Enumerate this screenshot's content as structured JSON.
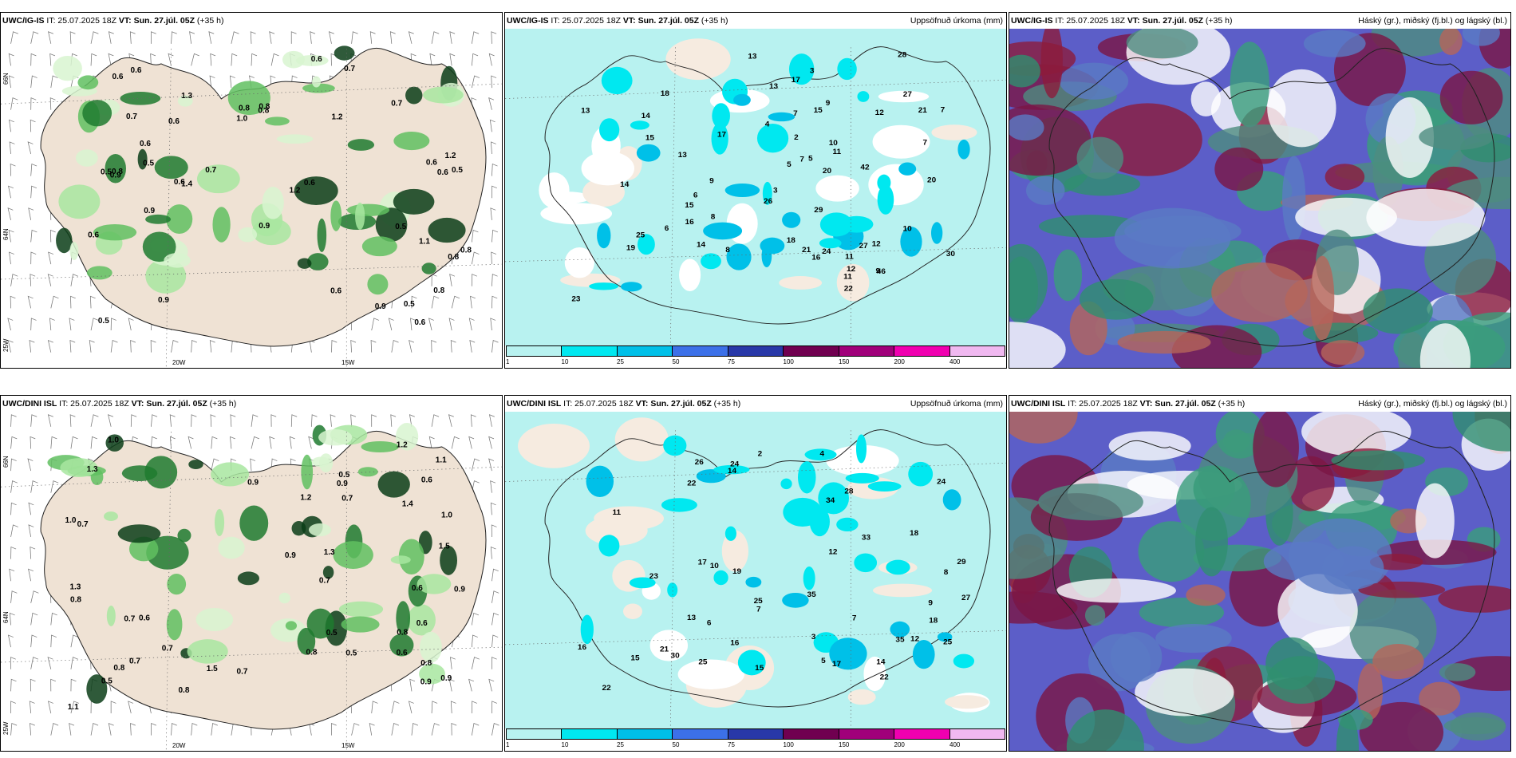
{
  "colorbar": {
    "ticks": [
      "1",
      "10",
      "25",
      "50",
      "75",
      "100",
      "150",
      "200",
      "400"
    ],
    "colors": [
      "#b8f2f0",
      "#00e8f0",
      "#00c0e8",
      "#3c70e8",
      "#2838a8",
      "#700050",
      "#a0007a",
      "#f000b0",
      "#f0b8f0"
    ]
  },
  "lon_labels": [
    "20W",
    "15W"
  ],
  "lat_labels": [
    "66N",
    "64N",
    "25W"
  ],
  "panels": [
    {
      "model": "UWC/IG-IS",
      "it": "IT: 25.07.2025 18Z",
      "vt_label": "VT:",
      "vt": "Sun. 27.júl. 05Z",
      "lead": "(+35 h)",
      "right": "",
      "kind": "precip1h",
      "values": [
        "0.5",
        "0.9",
        "0.7",
        "1.1",
        "0.6",
        "0.9",
        "0.6",
        "0.8",
        "0.5",
        "0.9",
        "0.7",
        "0.6",
        "1.2",
        "1.0",
        "0.8",
        "0.8",
        "0.9",
        "0.8",
        "0.6",
        "0.9",
        "0.5",
        "0.7",
        "0.6",
        "0.8",
        "1.2",
        "0.6",
        "0.8",
        "0.6",
        "0.6",
        "0.5",
        "0.6",
        "1.4",
        "0.6",
        "0.7",
        "1.3",
        "0.6",
        "0.5",
        "1.2",
        "0.8",
        "0.5",
        "0.6"
      ]
    },
    {
      "model": "UWC/IG-IS",
      "it": "IT: 25.07.2025 18Z",
      "vt_label": "VT:",
      "vt": "Sun. 27.júl. 05Z",
      "lead": "(+35 h)",
      "right": "Uppsöfnuð úrkoma (mm)",
      "kind": "accum",
      "values": [
        "13",
        "9",
        "11",
        "7",
        "14",
        "15",
        "17",
        "15",
        "11",
        "12",
        "7",
        "15",
        "18",
        "13",
        "14",
        "6",
        "12",
        "10",
        "13",
        "11",
        "9",
        "13",
        "5",
        "7",
        "25",
        "27",
        "20",
        "46",
        "42",
        "23",
        "21",
        "29",
        "17",
        "30",
        "28",
        "21",
        "14",
        "22",
        "16",
        "20",
        "18",
        "19",
        "24",
        "27",
        "9",
        "3",
        "2",
        "4",
        "3",
        "8",
        "10",
        "6",
        "5",
        "7",
        "12",
        "8",
        "16",
        "26"
      ]
    },
    {
      "model": "UWC/IG-IS",
      "it": "IT: 25.07.2025 18Z",
      "vt_label": "VT:",
      "vt": "Sun. 27.júl. 05Z",
      "lead": "(+35 h)",
      "right": "Háský (gr.), miðský (fj.bl.) og lágský (bl.)",
      "kind": "cloud",
      "values": []
    },
    {
      "model": "UWC/DINI ISL",
      "it": "IT: 25.07.2025 18Z",
      "vt_label": "VT:",
      "vt": "Sun. 27.júl. 05Z",
      "lead": "(+35 h)",
      "right": "",
      "kind": "precip1h",
      "values": [
        "1.1",
        "0.5",
        "0.9",
        "0.7",
        "0.9",
        "0.5",
        "1.2",
        "1.3",
        "0.8",
        "0.7",
        "0.9",
        "0.5",
        "1.5",
        "0.9",
        "0.6",
        "0.6",
        "0.6",
        "0.8",
        "0.9",
        "0.5",
        "1.2",
        "1.5",
        "1.3",
        "0.7",
        "1.0",
        "1.1",
        "0.6",
        "0.8",
        "0.7",
        "0.8",
        "0.7",
        "1.3",
        "1.0",
        "0.7",
        "1.0",
        "0.9",
        "0.8",
        "0.7",
        "0.6",
        "1.4",
        "0.8"
      ]
    },
    {
      "model": "UWC/DINI ISL",
      "it": "IT: 25.07.2025 18Z",
      "vt_label": "VT:",
      "vt": "Sun. 27.júl. 05Z",
      "lead": "(+35 h)",
      "right": "Uppsöfnuð úrkoma (mm)",
      "kind": "accum",
      "values": [
        "7",
        "17",
        "22",
        "15",
        "14",
        "24",
        "35",
        "25",
        "15",
        "16",
        "18",
        "13",
        "11",
        "9",
        "21",
        "19",
        "25",
        "35",
        "30",
        "22",
        "33",
        "27",
        "26",
        "29",
        "24",
        "25",
        "34",
        "16",
        "17",
        "22",
        "14",
        "12",
        "4",
        "6",
        "5",
        "3",
        "7",
        "8",
        "10",
        "2",
        "18",
        "23",
        "28",
        "12"
      ]
    },
    {
      "model": "UWC/DINI ISL",
      "it": "IT: 25.07.2025 18Z",
      "vt_label": "VT:",
      "vt": "Sun. 27.júl. 05Z",
      "lead": "(+35 h)",
      "right": "Háský (gr.), miðský (fj.bl.) og lágský (bl.)",
      "kind": "cloud",
      "values": []
    }
  ]
}
